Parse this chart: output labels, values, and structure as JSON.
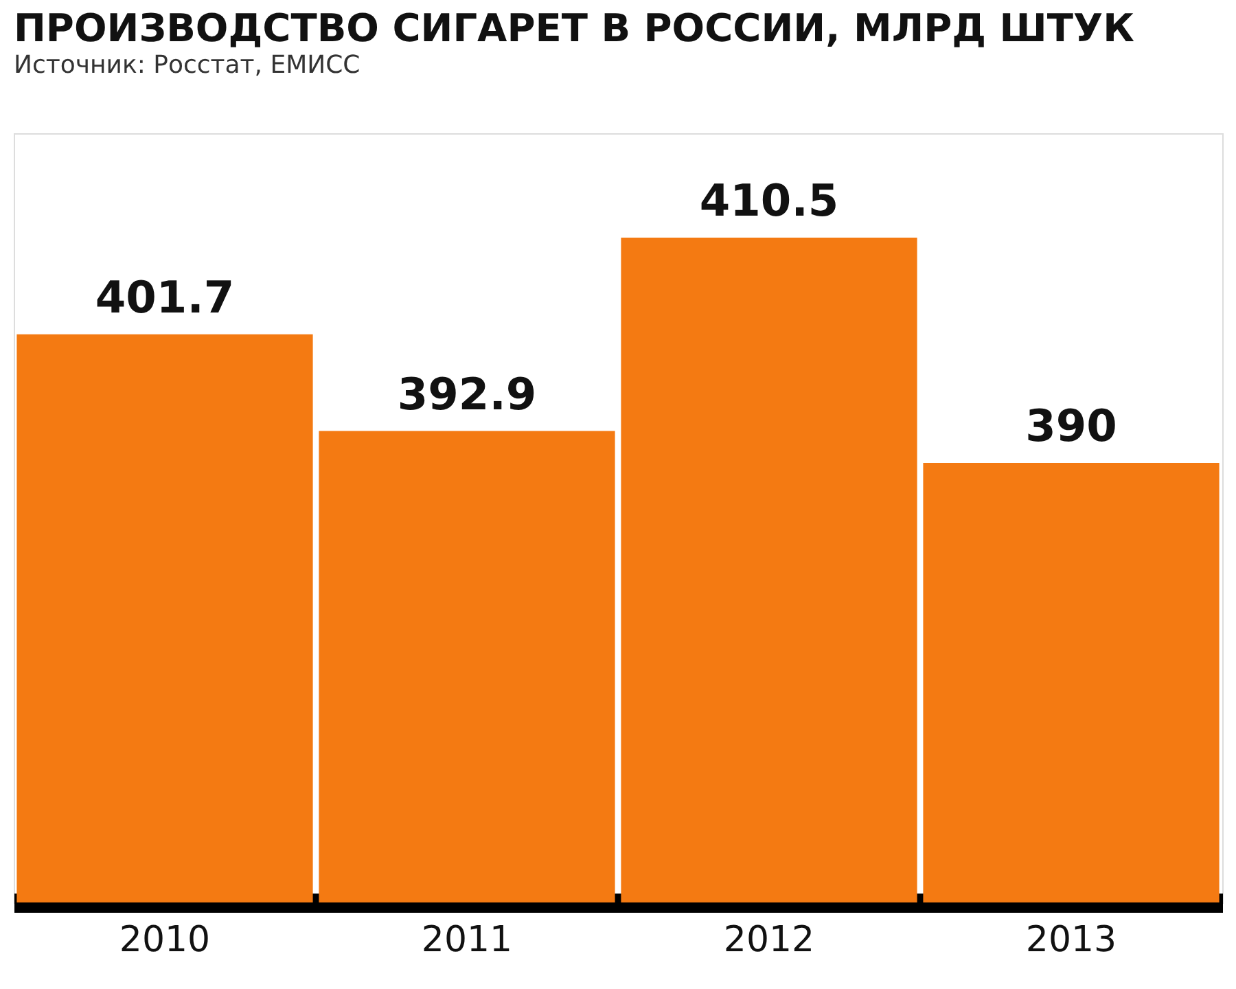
{
  "chart_data": {
    "type": "bar",
    "title": "ПРОИЗВОДСТВО СИГАРЕТ В РОССИИ, МЛРД ШТУК",
    "annotations": [
      "Источник: Росстат, ЕМИСС"
    ],
    "categories": [
      "2010",
      "2011",
      "2012",
      "2013"
    ],
    "values": [
      401.7,
      392.9,
      410.5,
      390
    ],
    "color": "#f47a12",
    "ylim": [
      350,
      420
    ],
    "data_labels": true,
    "tick_labels": "x",
    "grid": false
  }
}
